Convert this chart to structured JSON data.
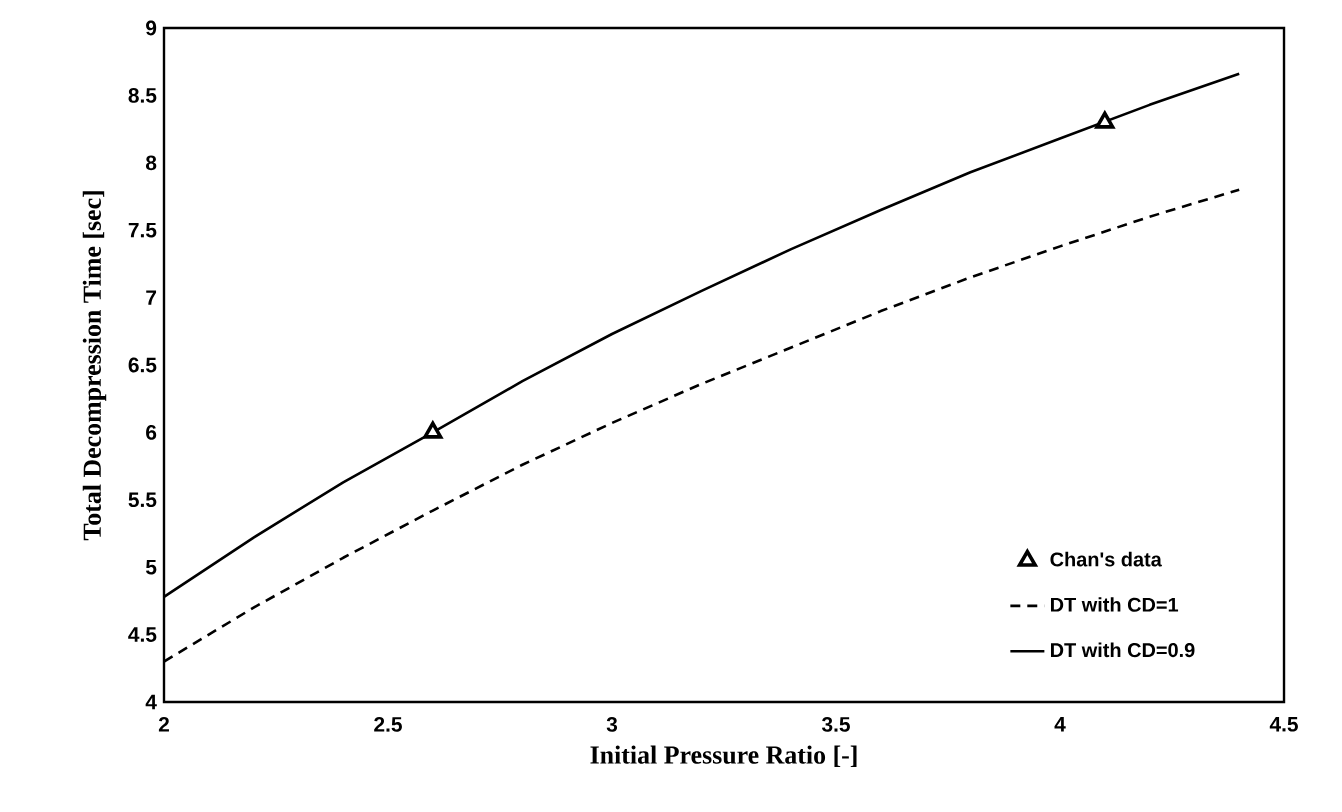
{
  "chart_data": {
    "type": "line",
    "xlabel": "Initial Pressure Ratio [-]",
    "ylabel": "Total Decompression Time [sec]",
    "xlim": [
      2,
      4.5
    ],
    "xticks": [
      2,
      2.5,
      3,
      3.5,
      4,
      4.5
    ],
    "ylim": [
      4,
      9
    ],
    "yticks": [
      4,
      4.5,
      5,
      5.5,
      6,
      6.5,
      7,
      7.5,
      8,
      8.5,
      9
    ],
    "legend": "bottom right",
    "grid": false,
    "series": [
      {
        "name": "Chan's data",
        "type": "scatter",
        "marker": "triangle",
        "color": "#000000",
        "x": [
          2.6,
          4.1
        ],
        "values": [
          6.0,
          8.3
        ]
      },
      {
        "name": "DT with CD=1",
        "line_style": "dashed",
        "marker": "none",
        "color": "#000000",
        "x": [
          2,
          2.2,
          2.4,
          2.6,
          2.8,
          3.0,
          3.2,
          3.4,
          3.6,
          3.8,
          4.0,
          4.2,
          4.4
        ],
        "values": [
          4.3,
          4.7,
          5.07,
          5.42,
          5.76,
          6.07,
          6.36,
          6.63,
          6.9,
          7.15,
          7.38,
          7.6,
          7.8
        ]
      },
      {
        "name": "DT with CD=0.9",
        "line_style": "solid",
        "marker": "none",
        "color": "#000000",
        "x": [
          2,
          2.2,
          2.4,
          2.6,
          2.8,
          3.0,
          3.2,
          3.4,
          3.6,
          3.8,
          4.0,
          4.2,
          4.4
        ],
        "values": [
          4.78,
          5.22,
          5.63,
          6.0,
          6.38,
          6.73,
          7.05,
          7.36,
          7.65,
          7.93,
          8.18,
          8.43,
          8.66
        ]
      }
    ]
  }
}
